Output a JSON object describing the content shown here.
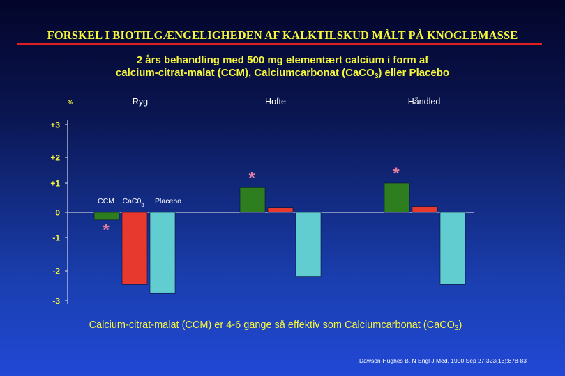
{
  "title": "FORSKEL I BIOTILGÆNGELIGHEDEN AF KALKTILSKUD MÅLT PÅ KNOGLEMASSE",
  "subtitle": {
    "line1": "2 års behandling med 500 mg elementært calcium i form af",
    "line2_pre": "calcium-citrat-malat (CCM), Calciumcarbonat (CaCO",
    "line2_sub": "3",
    "line2_post": ") eller Placebo"
  },
  "conclusion": {
    "pre": "Calcium-citrat-malat (CCM) er 4-6 gange så effektiv som Calciumcarbonat (CaCO",
    "sub": "3",
    "post": ")"
  },
  "reference": "Dawson-Hughes B. N Engl J Med. 1990 Sep 27;323(13):878-83",
  "colors": {
    "CCM": "#2e7d1e",
    "CaCO3": "#e8392e",
    "Placebo": "#62cdd0",
    "axis": "#c4cce0",
    "axis_text": "#ffffff",
    "tick_label": "#f6f63c",
    "asterisk": "#e07ea0"
  },
  "chart_data": {
    "type": "bar",
    "ylabel": "%",
    "ylim": [
      -3.1,
      3.1
    ],
    "grid": false,
    "y_ticks": [
      {
        "value": 3,
        "label": "+3"
      },
      {
        "value": 2,
        "label": "+2"
      },
      {
        "value": 1,
        "label": "+1"
      },
      {
        "value": 0,
        "label": "0"
      },
      {
        "value": -1,
        "label": "-1"
      },
      {
        "value": -2,
        "label": "-2"
      },
      {
        "value": -3,
        "label": "-3"
      }
    ],
    "categories": [
      "Ryg",
      "Hofte",
      "Håndled"
    ],
    "series": [
      {
        "name": "CCM",
        "values": [
          -0.3,
          0.85,
          1.0
        ],
        "significant": [
          true,
          true,
          true
        ]
      },
      {
        "name": "CaC0",
        "name_sub": "3",
        "values": [
          -2.45,
          0.15,
          0.2
        ]
      },
      {
        "name": "Placebo",
        "values": [
          -2.75,
          -2.2,
          -2.45
        ]
      }
    ],
    "series_labels_position": "inside plot, above Ryg group",
    "annotation_mark": "*"
  }
}
